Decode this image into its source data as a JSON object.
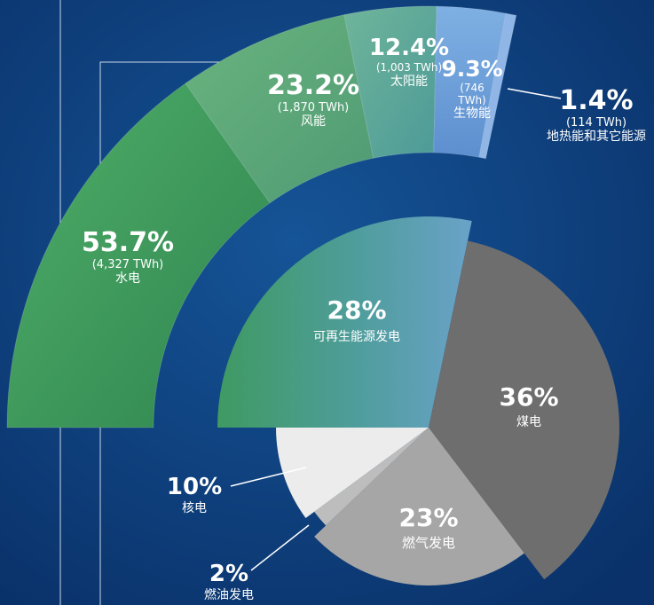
{
  "colors": {
    "background": "#0d3b78",
    "renewable_green": "#3f9a5a",
    "solar_teal": "#5aa6a0",
    "bio_blue": "#6f9fd8",
    "coal": "#6e6e6e",
    "gas": "#a6a6a6",
    "oil": "#bdbdbd",
    "nuclear": "#ececec"
  },
  "chart_data": [
    {
      "type": "pie",
      "subtype": "semicircle-donut",
      "slices": [
        {
          "value": 53.7,
          "label": "53.7%",
          "twh": "(4,327 TWh)",
          "name": "水电"
        },
        {
          "value": 23.2,
          "label": "23.2%",
          "twh": "(1,870 TWh)",
          "name": "风能"
        },
        {
          "value": 12.4,
          "label": "12.4%",
          "twh": "(1,003 TWh)",
          "name": "太阳能"
        },
        {
          "value": 9.3,
          "label": "9.3%",
          "twh": "(746 TWh)",
          "name": "生物能"
        },
        {
          "value": 1.4,
          "label": "1.4%",
          "twh": "(114 TWh)",
          "name": "地热能和其它能源"
        }
      ]
    },
    {
      "type": "pie",
      "slices": [
        {
          "value": 28,
          "label": "28%",
          "name": "可再生能源发电"
        },
        {
          "value": 36,
          "label": "36%",
          "name": "煤电"
        },
        {
          "value": 23,
          "label": "23%",
          "name": "燃气发电"
        },
        {
          "value": 2,
          "label": "2%",
          "name": "燃油发电"
        },
        {
          "value": 10,
          "label": "10%",
          "name": "核电"
        }
      ]
    }
  ]
}
